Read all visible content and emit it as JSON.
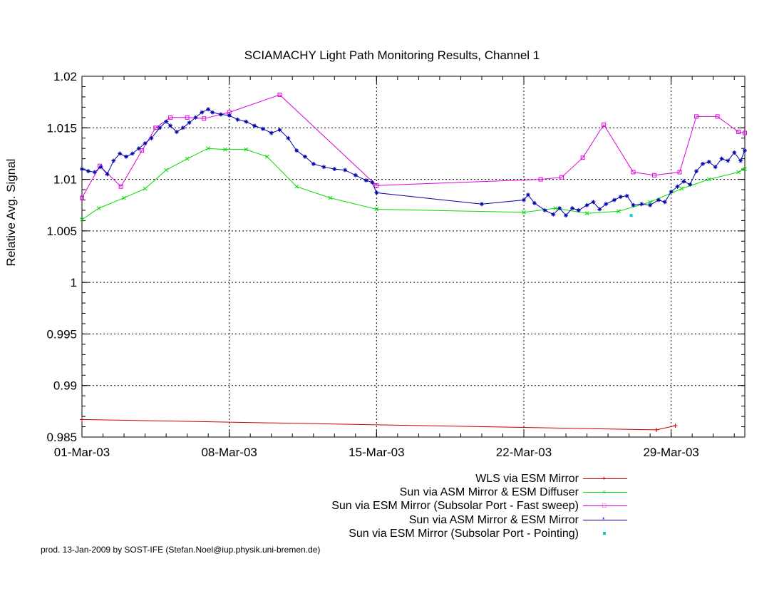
{
  "chart_data": {
    "type": "line",
    "title": "SCIAMACHY Light Path Monitoring Results, Channel 1",
    "xlabel": "",
    "ylabel": "Relative Avg. Signal",
    "x_unit": "day of March 2003",
    "xlim": [
      1,
      32.5
    ],
    "ylim": [
      0.985,
      1.02
    ],
    "x_ticks": [
      {
        "value": 1,
        "label": "01-Mar-03"
      },
      {
        "value": 8,
        "label": "08-Mar-03"
      },
      {
        "value": 15,
        "label": "15-Mar-03"
      },
      {
        "value": 22,
        "label": "22-Mar-03"
      },
      {
        "value": 29,
        "label": "29-Mar-03"
      }
    ],
    "y_ticks": [
      {
        "value": 0.985,
        "label": "0.985"
      },
      {
        "value": 0.99,
        "label": "0.99"
      },
      {
        "value": 0.995,
        "label": "0.995"
      },
      {
        "value": 1.0,
        "label": "1"
      },
      {
        "value": 1.005,
        "label": "1.005"
      },
      {
        "value": 1.01,
        "label": "1.01"
      },
      {
        "value": 1.015,
        "label": "1.015"
      },
      {
        "value": 1.02,
        "label": "1.02"
      }
    ],
    "grid": true,
    "legend_position": "bottom-right",
    "series": [
      {
        "name": "WLS via ESM Mirror",
        "color": "#cc0000",
        "marker": "plus",
        "x": [
          1.0,
          28.3,
          29.2
        ],
        "y": [
          0.9867,
          0.9857,
          0.9861
        ]
      },
      {
        "name": "Sun via ASM Mirror & ESM Diffuser",
        "color": "#00dd00",
        "marker": "x",
        "x": [
          1.0,
          1.8,
          3.0,
          4.0,
          5.0,
          6.0,
          7.0,
          7.8,
          8.8,
          9.8,
          11.2,
          12.8,
          15.0,
          22.0,
          23.5,
          25.0,
          26.5,
          28.0,
          29.5,
          30.8,
          32.2,
          32.5
        ],
        "y": [
          1.0061,
          1.0072,
          1.0082,
          1.0091,
          1.0109,
          1.012,
          1.013,
          1.0129,
          1.0129,
          1.0122,
          1.0093,
          1.0082,
          1.0071,
          1.0068,
          1.0072,
          1.0067,
          1.0069,
          1.0078,
          1.0091,
          1.01,
          1.0107,
          1.011
        ]
      },
      {
        "name": "Sun via ESM Mirror (Subsolar Port - Fast sweep)",
        "color": "#dd00dd",
        "marker": "square",
        "x": [
          1.0,
          1.85,
          2.85,
          3.85,
          4.5,
          5.2,
          6.0,
          6.8,
          8.0,
          10.4,
          15.0,
          22.8,
          23.8,
          24.8,
          25.8,
          27.2,
          28.2,
          29.4,
          30.2,
          31.2,
          32.2,
          32.5
        ],
        "y": [
          1.0082,
          1.0113,
          1.0093,
          1.0128,
          1.015,
          1.016,
          1.016,
          1.0159,
          1.0165,
          1.0182,
          1.0094,
          1.01,
          1.0102,
          1.0121,
          1.0153,
          1.0107,
          1.0104,
          1.0107,
          1.0161,
          1.0161,
          1.0146,
          1.0145
        ]
      },
      {
        "name": "Sun via ASM Mirror & ESM Mirror",
        "color": "#0000aa",
        "marker": "star",
        "x": [
          1.0,
          1.3,
          1.6,
          1.9,
          2.2,
          2.5,
          2.8,
          3.1,
          3.4,
          3.7,
          4.0,
          4.3,
          4.7,
          5.0,
          5.2,
          5.5,
          5.8,
          6.1,
          6.4,
          6.7,
          7.0,
          7.2,
          7.6,
          8.0,
          8.4,
          8.8,
          9.2,
          9.6,
          10.0,
          10.4,
          10.8,
          11.2,
          11.6,
          12.0,
          12.5,
          13.0,
          13.5,
          14.0,
          14.5,
          14.8,
          15.0,
          20.0,
          22.0,
          22.2,
          22.5,
          23.0,
          23.4,
          23.7,
          24.0,
          24.3,
          24.6,
          25.0,
          25.3,
          25.6,
          25.9,
          26.3,
          26.6,
          26.9,
          27.2,
          27.6,
          28.0,
          28.4,
          28.7,
          29.0,
          29.3,
          29.6,
          29.9,
          30.2,
          30.5,
          30.8,
          31.1,
          31.4,
          31.7,
          32.0,
          32.3,
          32.5
        ],
        "y": [
          1.011,
          1.0108,
          1.0107,
          1.0112,
          1.0105,
          1.0118,
          1.0125,
          1.0122,
          1.0125,
          1.013,
          1.0135,
          1.014,
          1.015,
          1.0156,
          1.0152,
          1.0146,
          1.015,
          1.0155,
          1.016,
          1.0165,
          1.0168,
          1.0165,
          1.0163,
          1.0162,
          1.0158,
          1.0156,
          1.0152,
          1.0149,
          1.0145,
          1.0148,
          1.014,
          1.0128,
          1.0122,
          1.0115,
          1.0112,
          1.011,
          1.0109,
          1.0104,
          1.0099,
          1.0097,
          1.0087,
          1.0076,
          1.008,
          1.0085,
          1.0077,
          1.007,
          1.0066,
          1.0072,
          1.0065,
          1.0072,
          1.007,
          1.0075,
          1.0078,
          1.0071,
          1.0076,
          1.008,
          1.0083,
          1.0084,
          1.0075,
          1.0076,
          1.0075,
          1.008,
          1.0078,
          1.0088,
          1.0093,
          1.0098,
          1.0095,
          1.0108,
          1.0115,
          1.0117,
          1.0112,
          1.012,
          1.0118,
          1.0126,
          1.0118,
          1.0128
        ]
      },
      {
        "name": "Sun via ESM Mirror (Subsolar Port - Pointing)",
        "color": "#00cccc",
        "marker": "dot",
        "x": [
          27.1
        ],
        "y": [
          1.0065
        ]
      }
    ]
  },
  "footer": "prod. 13-Jan-2009 by SOST-IFE (Stefan.Noel@iup.physik.uni-bremen.de)"
}
